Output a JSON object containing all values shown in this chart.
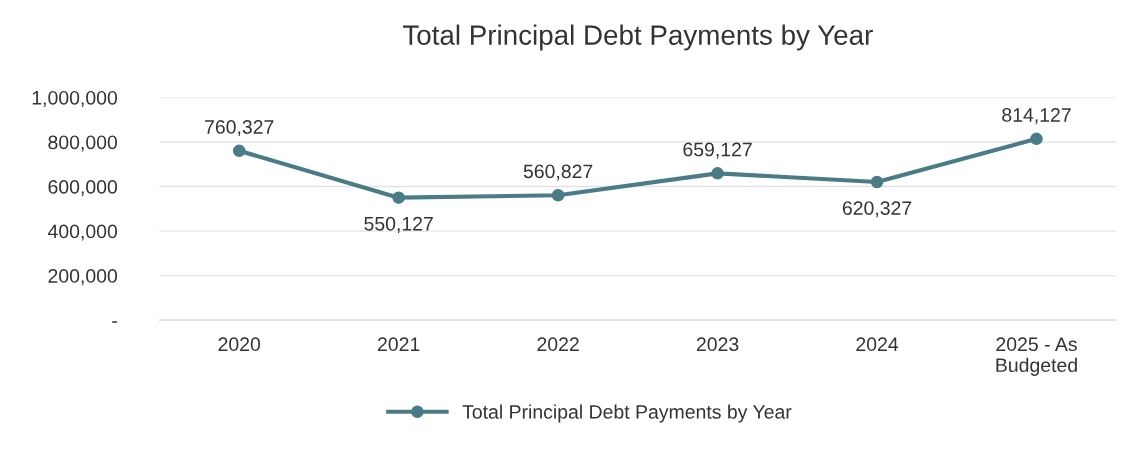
{
  "chart_data": {
    "type": "line",
    "title": "Total Principal Debt Payments by Year",
    "categories": [
      "2020",
      "2021",
      "2022",
      "2023",
      "2024",
      "2025 - As\nBudgeted"
    ],
    "series": [
      {
        "name": "Total Principal Debt Payments by Year",
        "color": "#4a7c87",
        "values": [
          760327,
          550127,
          560827,
          659127,
          620327,
          814127
        ],
        "value_labels": [
          "760,327",
          "550,127",
          "560,827",
          "659,127",
          "620,327",
          "814,127"
        ]
      }
    ],
    "ylim": [
      0,
      1000000
    ],
    "yticks": [
      {
        "value": 0,
        "label": "-"
      },
      {
        "value": 200000,
        "label": "200,000"
      },
      {
        "value": 400000,
        "label": "400,000"
      },
      {
        "value": 600000,
        "label": "600,000"
      },
      {
        "value": 800000,
        "label": "800,000"
      },
      {
        "value": 1000000,
        "label": "1,000,000"
      }
    ],
    "grid": "y",
    "legend": "bottom",
    "marker": "circle",
    "line_style": "solid"
  }
}
